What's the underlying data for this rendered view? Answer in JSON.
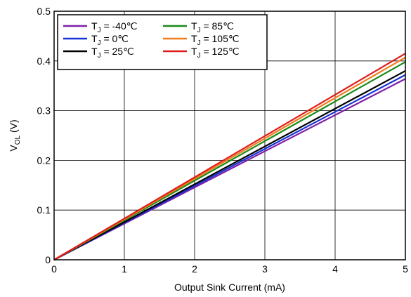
{
  "chart_data": {
    "type": "line",
    "xlabel": "Output Sink Current (mA)",
    "ylabel": "V_OL (V)",
    "xlim": [
      0,
      5
    ],
    "ylim": [
      0,
      0.5
    ],
    "xticks": [
      "0",
      "1",
      "2",
      "3",
      "4",
      "5"
    ],
    "yticks": [
      "0",
      "0.1",
      "0.2",
      "0.3",
      "0.4",
      "0.5"
    ],
    "grid": true,
    "legend_position": "top-left",
    "legend_columns": 2,
    "series": [
      {
        "name": "T_J = -40℃",
        "color": "#7f1fa8",
        "x": [
          0,
          5
        ],
        "y": [
          0,
          0.364
        ]
      },
      {
        "name": "T_J = 0℃",
        "color": "#1433d6",
        "x": [
          0,
          5
        ],
        "y": [
          0,
          0.372
        ]
      },
      {
        "name": "T_J = 25℃",
        "color": "#000000",
        "x": [
          0,
          5
        ],
        "y": [
          0,
          0.38
        ]
      },
      {
        "name": "T_J = 85℃",
        "color": "#1a8a1a",
        "x": [
          0,
          5
        ],
        "y": [
          0,
          0.398
        ]
      },
      {
        "name": "T_J = 105℃",
        "color": "#f07c1a",
        "x": [
          0,
          5
        ],
        "y": [
          0,
          0.407
        ]
      },
      {
        "name": "T_J = 125℃",
        "color": "#e01b1b",
        "x": [
          0,
          5
        ],
        "y": [
          0,
          0.415
        ]
      }
    ]
  }
}
